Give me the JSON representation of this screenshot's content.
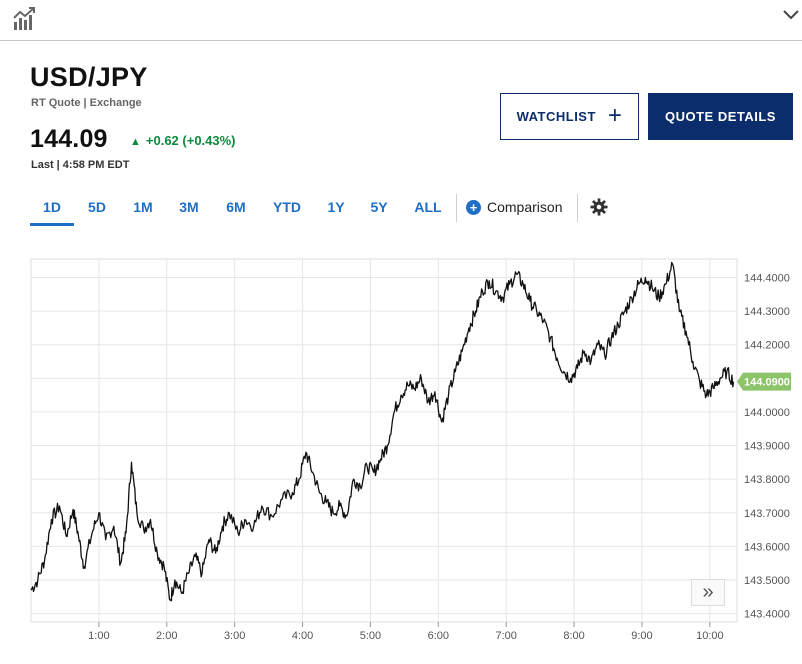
{
  "toolbar": {
    "chart_icon": "chart-icon",
    "collapse_icon": "chevron-down-icon"
  },
  "quote": {
    "symbol": "USD/JPY",
    "subtitle": "RT Quote | Exchange",
    "price": "144.09",
    "change": "+0.62 (+0.43%)",
    "last_time": "Last | 4:58 PM EDT"
  },
  "buttons": {
    "watchlist": "WATCHLIST",
    "quote_details": "QUOTE DETAILS"
  },
  "ranges": [
    "1D",
    "5D",
    "1M",
    "3M",
    "6M",
    "YTD",
    "1Y",
    "5Y",
    "ALL"
  ],
  "active_range": "1D",
  "comparison_label": "Comparison",
  "colors": {
    "navy": "#0c2d6b",
    "blue": "#1e6ec8",
    "up": "#0b8a3e",
    "price_tag": "#8cc46a"
  },
  "chart_data": {
    "type": "line",
    "x_unit": "hours",
    "x_ticks": [
      1,
      2,
      3,
      4,
      5,
      6,
      7,
      8,
      9,
      10
    ],
    "x_tick_labels": [
      "1:00",
      "2:00",
      "3:00",
      "4:00",
      "5:00",
      "6:00",
      "7:00",
      "8:00",
      "9:00",
      "10:00"
    ],
    "xlim": [
      0,
      10.4
    ],
    "ylim": [
      143.375,
      144.455
    ],
    "y_ticks": [
      143.4,
      143.5,
      143.6,
      143.7,
      143.8,
      143.9,
      144.0,
      144.1,
      144.2,
      144.3,
      144.4
    ],
    "y_tick_labels": [
      "143.4000",
      "143.5000",
      "143.6000",
      "143.7000",
      "143.8000",
      "143.9000",
      "144.0000",
      "144.1000",
      "144.2000",
      "144.3000",
      "144.4000"
    ],
    "last_value_label": "144.0900",
    "last_value": 144.09,
    "grid": true,
    "series": [
      {
        "points": [
          [
            0.0,
            143.47
          ],
          [
            0.1,
            143.5
          ],
          [
            0.2,
            143.56
          ],
          [
            0.3,
            143.68
          ],
          [
            0.42,
            143.72
          ],
          [
            0.52,
            143.63
          ],
          [
            0.62,
            143.71
          ],
          [
            0.7,
            143.63
          ],
          [
            0.78,
            143.54
          ],
          [
            0.9,
            143.64
          ],
          [
            1.0,
            143.7
          ],
          [
            1.1,
            143.62
          ],
          [
            1.22,
            143.66
          ],
          [
            1.32,
            143.55
          ],
          [
            1.4,
            143.64
          ],
          [
            1.48,
            143.85
          ],
          [
            1.56,
            143.7
          ],
          [
            1.66,
            143.65
          ],
          [
            1.76,
            143.68
          ],
          [
            1.86,
            143.58
          ],
          [
            1.96,
            143.54
          ],
          [
            2.05,
            143.44
          ],
          [
            2.12,
            143.5
          ],
          [
            2.22,
            143.46
          ],
          [
            2.32,
            143.52
          ],
          [
            2.42,
            143.57
          ],
          [
            2.52,
            143.52
          ],
          [
            2.62,
            143.62
          ],
          [
            2.72,
            143.58
          ],
          [
            2.82,
            143.66
          ],
          [
            2.92,
            143.7
          ],
          [
            3.05,
            143.64
          ],
          [
            3.15,
            143.68
          ],
          [
            3.28,
            143.66
          ],
          [
            3.4,
            143.72
          ],
          [
            3.55,
            143.69
          ],
          [
            3.7,
            143.74
          ],
          [
            3.85,
            143.76
          ],
          [
            3.95,
            143.8
          ],
          [
            4.05,
            143.88
          ],
          [
            4.15,
            143.82
          ],
          [
            4.25,
            143.76
          ],
          [
            4.35,
            143.73
          ],
          [
            4.45,
            143.7
          ],
          [
            4.55,
            143.72
          ],
          [
            4.65,
            143.69
          ],
          [
            4.75,
            143.8
          ],
          [
            4.85,
            143.78
          ],
          [
            4.95,
            143.84
          ],
          [
            5.05,
            143.82
          ],
          [
            5.15,
            143.86
          ],
          [
            5.25,
            143.9
          ],
          [
            5.35,
            144.0
          ],
          [
            5.45,
            144.05
          ],
          [
            5.55,
            144.08
          ],
          [
            5.65,
            144.07
          ],
          [
            5.75,
            144.1
          ],
          [
            5.85,
            144.03
          ],
          [
            5.95,
            144.06
          ],
          [
            6.05,
            143.97
          ],
          [
            6.15,
            144.05
          ],
          [
            6.25,
            144.12
          ],
          [
            6.35,
            144.18
          ],
          [
            6.45,
            144.25
          ],
          [
            6.55,
            144.3
          ],
          [
            6.65,
            144.36
          ],
          [
            6.75,
            144.39
          ],
          [
            6.85,
            144.36
          ],
          [
            6.95,
            144.34
          ],
          [
            7.05,
            144.38
          ],
          [
            7.15,
            144.41
          ],
          [
            7.25,
            144.38
          ],
          [
            7.35,
            144.33
          ],
          [
            7.45,
            144.3
          ],
          [
            7.55,
            144.27
          ],
          [
            7.65,
            144.22
          ],
          [
            7.75,
            144.16
          ],
          [
            7.85,
            144.12
          ],
          [
            7.95,
            144.1
          ],
          [
            8.05,
            144.13
          ],
          [
            8.15,
            144.18
          ],
          [
            8.25,
            144.15
          ],
          [
            8.35,
            144.2
          ],
          [
            8.45,
            144.17
          ],
          [
            8.55,
            144.22
          ],
          [
            8.65,
            144.26
          ],
          [
            8.75,
            144.3
          ],
          [
            8.85,
            144.34
          ],
          [
            8.95,
            144.38
          ],
          [
            9.05,
            144.4
          ],
          [
            9.15,
            144.37
          ],
          [
            9.25,
            144.34
          ],
          [
            9.35,
            144.38
          ],
          [
            9.45,
            144.44
          ],
          [
            9.55,
            144.3
          ],
          [
            9.65,
            144.24
          ],
          [
            9.75,
            144.15
          ],
          [
            9.85,
            144.09
          ],
          [
            9.95,
            144.05
          ],
          [
            10.05,
            144.07
          ],
          [
            10.15,
            144.1
          ],
          [
            10.25,
            144.12
          ],
          [
            10.35,
            144.09
          ]
        ]
      }
    ]
  }
}
